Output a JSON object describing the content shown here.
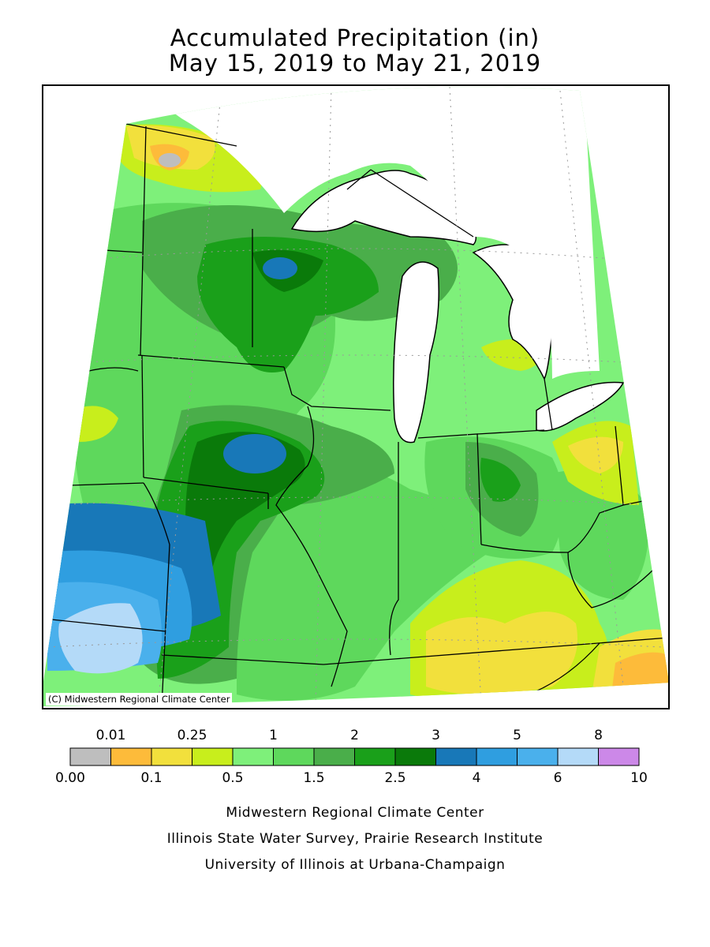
{
  "title": {
    "line1": "Accumulated Precipitation (in)",
    "line2": "May 15, 2019 to May 21, 2019"
  },
  "map": {
    "copyright": "(C) Midwestern Regional Climate Center",
    "colors": {
      "c000": "#bebebe",
      "c001": "#fdbb3a",
      "c010": "#f2e03c",
      "c025": "#c8ee1c",
      "c050": "#7ef07a",
      "c100": "#5ed85c",
      "c150": "#4aae4a",
      "c200": "#1aa01a",
      "c250": "#0a7a0a",
      "c300": "#1878b8",
      "c400": "#2f9ee0",
      "c500": "#4ab0ec",
      "c600": "#b4daf8",
      "c800": "#cc88e8"
    }
  },
  "legend": {
    "colors": [
      "#bebebe",
      "#fdbb3a",
      "#f2e03c",
      "#c8ee1c",
      "#7ef07a",
      "#5ed85c",
      "#4aae4a",
      "#1aa01a",
      "#0a7a0a",
      "#1878b8",
      "#2f9ee0",
      "#4ab0ec",
      "#b4daf8",
      "#cc88e8"
    ],
    "top_labels": [
      "0.01",
      "0.25",
      "1",
      "2",
      "3",
      "5",
      "8"
    ],
    "bottom_labels": [
      "0.00",
      "0.1",
      "0.5",
      "1.5",
      "2.5",
      "4",
      "6",
      "10"
    ]
  },
  "credits": {
    "line1": "Midwestern Regional Climate Center",
    "line2": "Illinois State Water Survey, Prairie Research Institute",
    "line3": "University of Illinois at Urbana-Champaign"
  }
}
